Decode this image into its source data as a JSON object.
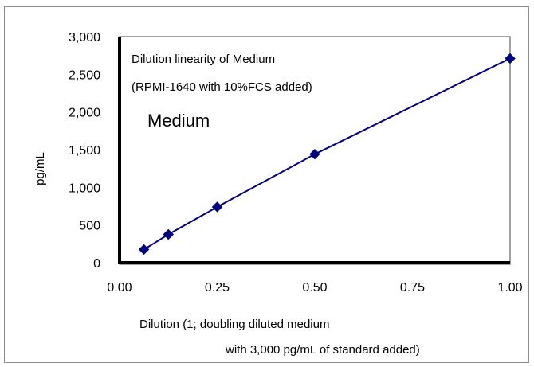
{
  "chart_data": {
    "type": "line",
    "annotations": [
      "Dilution linearity of Medium",
      "(RPMI-1640 with 10%FCS added)",
      "Medium"
    ],
    "xlabel": [
      "Dilution (1; doubling diluted medium",
      "with 3,000 pg/mL of standard added)"
    ],
    "ylabel": "pg/mL",
    "xlim": [
      0,
      1
    ],
    "ylim": [
      0,
      3000
    ],
    "x_ticks": [
      "0.00",
      "0.25",
      "0.50",
      "0.75",
      "1.00"
    ],
    "y_ticks": [
      "0",
      "500",
      "1,000",
      "1,500",
      "2,000",
      "2,500",
      "3,000"
    ],
    "series": [
      {
        "x": [
          0.0625,
          0.125,
          0.25,
          0.5,
          1.0
        ],
        "y": [
          175,
          375,
          740,
          1440,
          2710
        ],
        "color": "#000080",
        "marker": "diamond"
      }
    ],
    "grid": false
  }
}
